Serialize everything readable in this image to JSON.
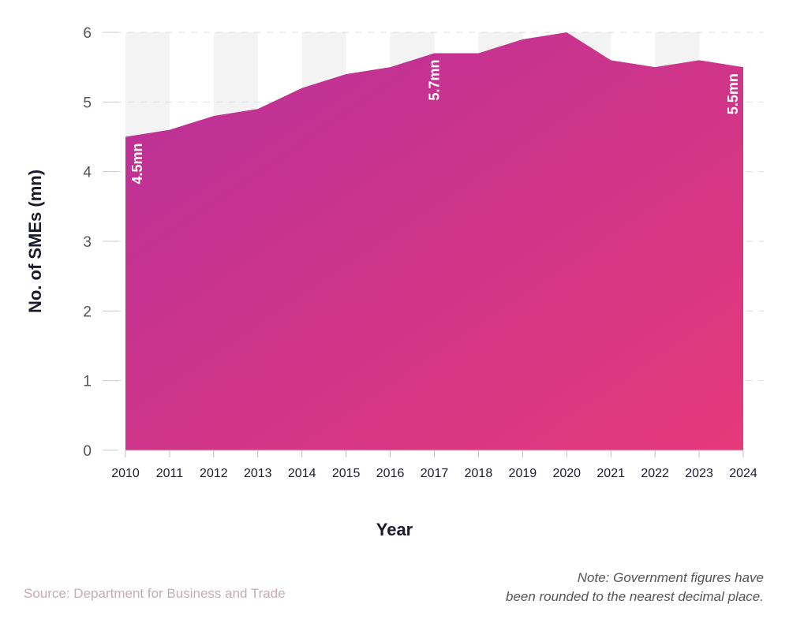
{
  "chart_data": {
    "type": "area",
    "title": "",
    "xlabel": "Year",
    "ylabel": "No. of SMEs (mn)",
    "x": [
      2010,
      2011,
      2012,
      2013,
      2014,
      2015,
      2016,
      2017,
      2018,
      2019,
      2020,
      2021,
      2022,
      2023,
      2024
    ],
    "values": [
      4.5,
      4.6,
      4.8,
      4.9,
      5.2,
      5.4,
      5.5,
      5.7,
      5.7,
      5.9,
      6.0,
      5.6,
      5.5,
      5.6,
      5.5
    ],
    "ylim": [
      0,
      6
    ],
    "yticks": [
      0,
      1,
      2,
      3,
      4,
      5,
      6
    ],
    "grid": "horizontal dashed",
    "alternating_column_bands": true,
    "annotations": [
      {
        "x": 2010,
        "label": "4.5mn"
      },
      {
        "x": 2017,
        "label": "5.7mn"
      },
      {
        "x": 2024,
        "label": "5.5mn"
      }
    ],
    "colors": {
      "gradient_start": "#b8309a",
      "gradient_end": "#e5397a",
      "band": "#f3f3f3"
    }
  },
  "footer": {
    "source": "Source: Department for Business and Trade",
    "note_line1": "Note: Government figures have",
    "note_line2": "been rounded to the nearest decimal place."
  }
}
